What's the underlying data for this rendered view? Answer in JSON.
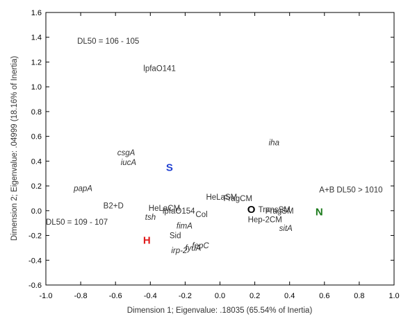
{
  "chart_data": {
    "type": "scatter",
    "title": "",
    "xlabel": "Dimension 1; Eigenvalue: .18035 (65.54% of Inertia)",
    "ylabel": "Dimension 2; Eigenvalue: .04999 (18.16% of Inertia)",
    "xlim": [
      -1.0,
      1.0
    ],
    "ylim": [
      -0.6,
      1.6
    ],
    "x_ticks": [
      "-1.0",
      "-0.8",
      "-0.6",
      "-0.4",
      "-0.2",
      "0.0",
      "0.2",
      "0.4",
      "0.6",
      "0.8",
      "1.0"
    ],
    "y_ticks": [
      "-0.6",
      "-0.4",
      "-0.2",
      "0.0",
      "0.2",
      "0.4",
      "0.6",
      "0.8",
      "1.0",
      "1.2",
      "1.4",
      "1.6"
    ],
    "grid": false,
    "labels": [
      {
        "text": "DL50 = 106 - 105",
        "x": -0.82,
        "y": 1.37,
        "italic": false
      },
      {
        "text": "lpfaO141",
        "x": -0.44,
        "y": 1.15,
        "italic": false
      },
      {
        "text": "iha",
        "x": 0.28,
        "y": 0.55,
        "italic": true
      },
      {
        "text": "csgA",
        "x": -0.59,
        "y": 0.47,
        "italic": true
      },
      {
        "text": "iucA",
        "x": -0.57,
        "y": 0.39,
        "italic": true
      },
      {
        "text": "papA",
        "x": -0.84,
        "y": 0.18,
        "italic": true
      },
      {
        "text": "A+B",
        "x": 0.57,
        "y": 0.17,
        "italic": false
      },
      {
        "text": "DL50 > 1010",
        "x": 0.67,
        "y": 0.17,
        "italic": false
      },
      {
        "text": "HeLaSM",
        "x": -0.08,
        "y": 0.11,
        "italic": false
      },
      {
        "text": "FragCM",
        "x": 0.02,
        "y": 0.1,
        "italic": false
      },
      {
        "text": "B2+D",
        "x": -0.67,
        "y": 0.04,
        "italic": false
      },
      {
        "text": "HeLaCM",
        "x": -0.41,
        "y": 0.02,
        "italic": false
      },
      {
        "text": "lpfaO154",
        "x": -0.33,
        "y": 0.0,
        "italic": false
      },
      {
        "text": "TransSM",
        "x": 0.22,
        "y": 0.01,
        "italic": false
      },
      {
        "text": "FragSM",
        "x": 0.26,
        "y": 0.0,
        "italic": false
      },
      {
        "text": "Col",
        "x": -0.14,
        "y": -0.03,
        "italic": false
      },
      {
        "text": "tsh",
        "x": -0.43,
        "y": -0.05,
        "italic": true
      },
      {
        "text": "DL50 = 109 - 107",
        "x": -1.0,
        "y": -0.09,
        "italic": false
      },
      {
        "text": "Hep-2CM",
        "x": 0.16,
        "y": -0.07,
        "italic": false
      },
      {
        "text": "fimA",
        "x": -0.25,
        "y": -0.12,
        "italic": true
      },
      {
        "text": "sitA",
        "x": 0.34,
        "y": -0.14,
        "italic": true
      },
      {
        "text": "Sid",
        "x": -0.29,
        "y": -0.2,
        "italic": false
      },
      {
        "text": "fepC",
        "x": -0.16,
        "y": -0.28,
        "italic": true
      },
      {
        "text": "fyuA",
        "x": -0.2,
        "y": -0.3,
        "italic": true
      },
      {
        "text": "irp-2",
        "x": -0.28,
        "y": -0.32,
        "italic": true
      }
    ],
    "group_labels": [
      {
        "text": "S",
        "x": -0.29,
        "y": 0.35,
        "color": "#1f3fd1"
      },
      {
        "text": "H",
        "x": -0.42,
        "y": -0.24,
        "color": "#e01c1c"
      },
      {
        "text": "O",
        "x": 0.18,
        "y": 0.01,
        "color": "#000000"
      },
      {
        "text": "N",
        "x": 0.57,
        "y": -0.01,
        "color": "#1a7a1a"
      }
    ]
  }
}
